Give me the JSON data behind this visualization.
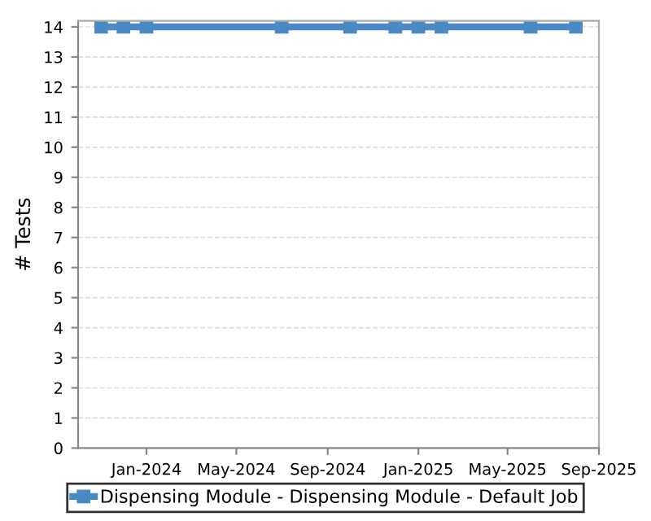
{
  "chart_data": {
    "type": "line",
    "ylabel": "# Tests",
    "x": [
      "2023-11-01",
      "2023-12-01",
      "2024-01-01",
      "2024-07-01",
      "2024-10-01",
      "2024-12-01",
      "2025-01-01",
      "2025-02-01",
      "2025-06-01",
      "2025-08-01"
    ],
    "series": [
      {
        "name": "Dispensing Module - Dispensing Module - Default Job",
        "color": "#4a8ac4",
        "values": [
          14,
          14,
          14,
          14,
          14,
          14,
          14,
          14,
          14,
          14
        ]
      }
    ],
    "xlim": [
      "2023-10-01",
      "2025-09-01"
    ],
    "xticks": [
      {
        "value": "2024-01-01",
        "label": "Jan-2024"
      },
      {
        "value": "2024-05-01",
        "label": "May-2024"
      },
      {
        "value": "2024-09-01",
        "label": "Sep-2024"
      },
      {
        "value": "2025-01-01",
        "label": "Jan-2025"
      },
      {
        "value": "2025-05-01",
        "label": "May-2025"
      },
      {
        "value": "2025-09-01",
        "label": "Sep-2025"
      }
    ],
    "ylim": [
      0,
      14.2
    ],
    "yticks": [
      0,
      1,
      2,
      3,
      4,
      5,
      6,
      7,
      8,
      9,
      10,
      11,
      12,
      13,
      14
    ],
    "grid": "y",
    "legend": "bottom",
    "marker": "square",
    "line_style": "solid"
  }
}
